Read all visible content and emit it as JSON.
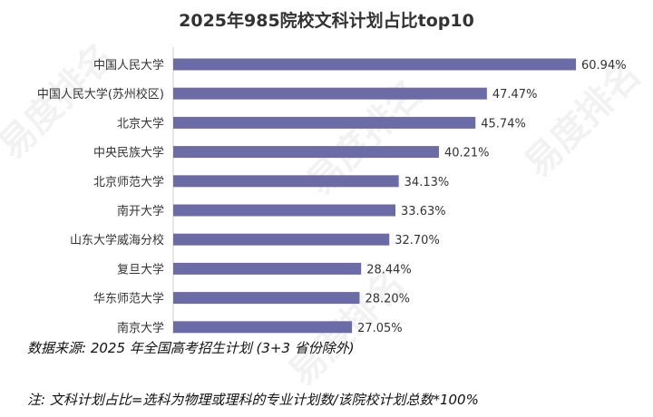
{
  "watermark": "易度排名 EDU Ranking.cn",
  "chart_data": {
    "type": "bar",
    "orientation": "horizontal",
    "title": "2025年985院校文科计划占比top10",
    "categories": [
      "中国人民大学",
      "中国人民大学(苏州校区)",
      "北京大学",
      "中央民族大学",
      "北京师范大学",
      "南开大学",
      "山东大学威海分校",
      "复旦大学",
      "华东师范大学",
      "南京大学"
    ],
    "values": [
      60.94,
      47.47,
      45.74,
      40.21,
      34.13,
      33.63,
      32.7,
      28.44,
      28.2,
      27.05
    ],
    "value_labels": [
      "60.94%",
      "47.47%",
      "45.74%",
      "40.21%",
      "34.13%",
      "33.63%",
      "32.70%",
      "28.44%",
      "28.20%",
      "27.05%"
    ],
    "unit": "%",
    "xlim": [
      0,
      61
    ],
    "grid": false,
    "bar_color": "#6b6ba8"
  },
  "notes": {
    "source": "数据来源: 2025 年全国高考招生计划 (3+3 省份除外)",
    "formula": "注: 文科计划占比=选科为物理或理科的专业计划数/该院校计划总数*100%"
  }
}
